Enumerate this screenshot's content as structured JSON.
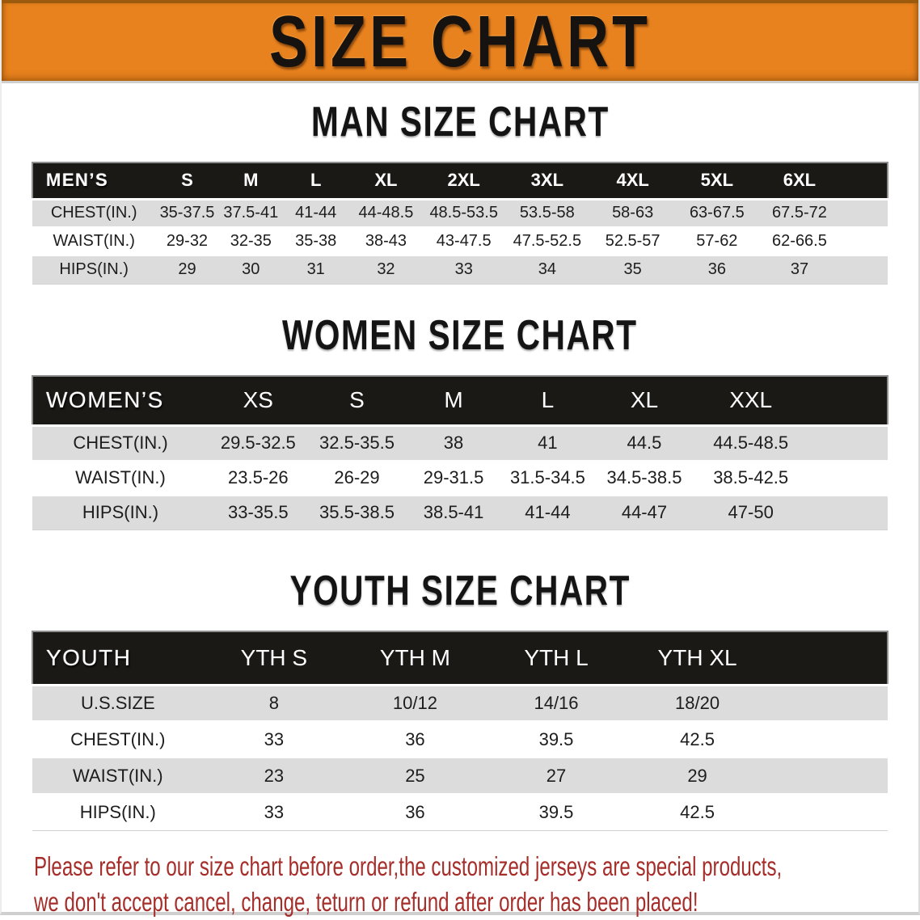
{
  "banner": {
    "title": "SIZE CHART"
  },
  "colors": {
    "banner_bg": "#e8821e",
    "header_bar": "#1a1916",
    "header_text": "#ffffff",
    "row_stripe": "#dcdcdc",
    "cell_text": "#1d1d1d",
    "note_text": "#a62e2a"
  },
  "chart_data": [
    {
      "type": "table",
      "title": "MAN SIZE CHART",
      "header_label": "MEN’S",
      "columns": [
        "S",
        "M",
        "L",
        "XL",
        "2XL",
        "3XL",
        "4XL",
        "5XL",
        "6XL"
      ],
      "rows": [
        {
          "label": "CHEST(IN.)",
          "values": [
            "35-37.5",
            "37.5-41",
            "41-44",
            "44-48.5",
            "48.5-53.5",
            "53.5-58",
            "58-63",
            "63-67.5",
            "67.5-72"
          ]
        },
        {
          "label": "WAIST(IN.)",
          "values": [
            "29-32",
            "32-35",
            "35-38",
            "38-43",
            "43-47.5",
            "47.5-52.5",
            "52.5-57",
            "57-62",
            "62-66.5"
          ]
        },
        {
          "label": "HIPS(IN.)",
          "values": [
            "29",
            "30",
            "31",
            "32",
            "33",
            "34",
            "35",
            "36",
            "37"
          ]
        }
      ]
    },
    {
      "type": "table",
      "title": "WOMEN SIZE CHART",
      "header_label": "WOMEN’S",
      "columns": [
        "XS",
        "S",
        "M",
        "L",
        "XL",
        "XXL"
      ],
      "rows": [
        {
          "label": "CHEST(IN.)",
          "values": [
            "29.5-32.5",
            "32.5-35.5",
            "38",
            "41",
            "44.5",
            "44.5-48.5"
          ]
        },
        {
          "label": "WAIST(IN.)",
          "values": [
            "23.5-26",
            "26-29",
            "29-31.5",
            "31.5-34.5",
            "34.5-38.5",
            "38.5-42.5"
          ]
        },
        {
          "label": "HIPS(IN.)",
          "values": [
            "33-35.5",
            "35.5-38.5",
            "38.5-41",
            "41-44",
            "44-47",
            "47-50"
          ]
        }
      ]
    },
    {
      "type": "table",
      "title": "YOUTH SIZE CHART",
      "header_label": "YOUTH",
      "columns": [
        "YTH S",
        "YTH M",
        "YTH L",
        "YTH XL"
      ],
      "rows": [
        {
          "label": "U.S.SIZE",
          "values": [
            "8",
            "10/12",
            "14/16",
            "18/20"
          ]
        },
        {
          "label": "CHEST(IN.)",
          "values": [
            "33",
            "36",
            "39.5",
            "42.5"
          ]
        },
        {
          "label": "WAIST(IN.)",
          "values": [
            "23",
            "25",
            "27",
            "29"
          ]
        },
        {
          "label": "HIPS(IN.)",
          "values": [
            "33",
            "36",
            "39.5",
            "42.5"
          ]
        }
      ]
    }
  ],
  "footer_note": {
    "lines": [
      "Please refer to our size chart before order,the customized jerseys are special products,",
      "we don't accept cancel, change, teturn or refund after order has been placed!"
    ]
  }
}
